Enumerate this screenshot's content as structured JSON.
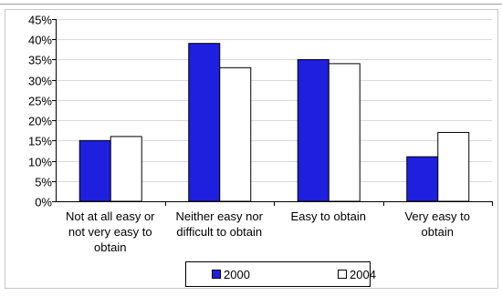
{
  "chart_data": {
    "type": "bar",
    "title": "",
    "xlabel": "",
    "ylabel": "",
    "ylim": [
      0,
      45
    ],
    "y_ticks": [
      "0%",
      "5%",
      "10%",
      "15%",
      "20%",
      "25%",
      "30%",
      "35%",
      "40%",
      "45%"
    ],
    "grid": true,
    "legend_position": "bottom",
    "categories": [
      [
        "Not at all easy or",
        "not very easy to",
        "obtain"
      ],
      [
        "Neither easy nor",
        "difficult to obtain"
      ],
      [
        "Easy to obtain"
      ],
      [
        "Very easy to",
        "obtain"
      ]
    ],
    "series": [
      {
        "name": "2000",
        "values": [
          15,
          39,
          35,
          11
        ],
        "color": "#1f1fe0"
      },
      {
        "name": "2004",
        "values": [
          16,
          33,
          34,
          17
        ],
        "color": "#ffffff"
      }
    ]
  }
}
